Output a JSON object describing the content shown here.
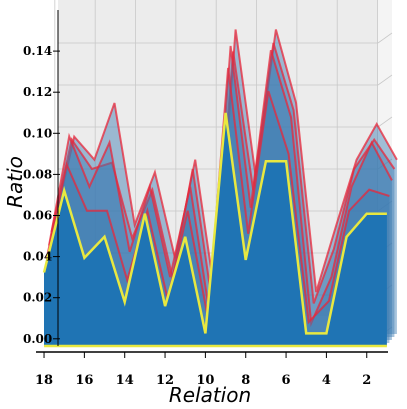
{
  "chart_data": {
    "type": "area",
    "title": "",
    "xlabel": "Relation",
    "ylabel": "Ratio",
    "x": [
      18,
      17,
      16,
      15,
      14,
      13,
      12,
      11,
      10,
      9,
      8,
      7,
      6,
      5,
      4,
      3,
      2,
      1
    ],
    "xticks": [
      18,
      16,
      14,
      12,
      10,
      8,
      6,
      4,
      2
    ],
    "yticks": [
      0.0,
      0.02,
      0.04,
      0.06,
      0.08,
      0.1,
      0.12,
      0.14
    ],
    "ytick_labels": [
      "0.00",
      "0.02",
      "0.04",
      "0.06",
      "0.08",
      "0.10",
      "0.12",
      "0.14"
    ],
    "xlim": [
      18.2,
      0.5
    ],
    "ylim": [
      0,
      0.16
    ],
    "grid": true,
    "projection": "3d",
    "series": [
      {
        "values": [
          0.035,
          0.074,
          0.042,
          0.052,
          0.021,
          0.063,
          0.019,
          0.052,
          0.006,
          0.111,
          0.041,
          0.088,
          0.088,
          0.006,
          0.006,
          0.052,
          0.063,
          0.063
        ],
        "edge_color": "#e8e840"
      },
      {
        "values": [
          0.04,
          0.085,
          0.063,
          0.063,
          0.03,
          0.063,
          0.021,
          0.063,
          0.012,
          0.131,
          0.052,
          0.12,
          0.09,
          0.01,
          0.02,
          0.063,
          0.073,
          0.07
        ],
        "edge_color": "#e8273a"
      },
      {
        "values": [
          0.045,
          0.097,
          0.073,
          0.094,
          0.042,
          0.073,
          0.03,
          0.073,
          0.01,
          0.14,
          0.063,
          0.138,
          0.106,
          0.008,
          0.03,
          0.073,
          0.094,
          0.076
        ],
        "edge_color": "#e8273a"
      },
      {
        "values": [
          0.05,
          0.094,
          0.08,
          0.083,
          0.047,
          0.07,
          0.028,
          0.08,
          0.014,
          0.136,
          0.07,
          0.14,
          0.108,
          0.016,
          0.042,
          0.08,
          0.094,
          0.08
        ],
        "edge_color": "#e8273a"
      },
      {
        "values": [
          0.052,
          0.094,
          0.083,
          0.11,
          0.052,
          0.077,
          0.036,
          0.083,
          0.017,
          0.145,
          0.075,
          0.145,
          0.11,
          0.02,
          0.052,
          0.083,
          0.1,
          0.083
        ],
        "edge_color": "#e8273a"
      }
    ],
    "colors": {
      "front_fill": "#1f74b4",
      "back_fill": "#3a79b2",
      "front_edge": "#e8e840",
      "back_edge": "#e8273a",
      "pane": "#ececec",
      "grid": "#c8c8c8"
    }
  }
}
